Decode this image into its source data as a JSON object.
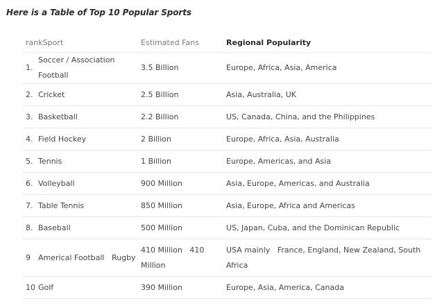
{
  "heading": "Here is a Table of Top 10 Popular Sports",
  "table": {
    "headers": {
      "rank": "rank",
      "sport": "Sport",
      "fans": "Estimated Fans",
      "region": "Regional Popularity"
    },
    "rows": [
      {
        "rank": "1.",
        "sport": "Soccer / Association Football",
        "fans": "3.5 Billion",
        "region": "Europe, Africa, Asia, America"
      },
      {
        "rank": "2.",
        "sport": "Cricket",
        "fans": "2.5 Billion",
        "region": "Asia, Australia, UK"
      },
      {
        "rank": "3.",
        "sport": "Basketball",
        "fans": "2.2 Billion",
        "region": "US, Canada, China, and the Philippines"
      },
      {
        "rank": "4.",
        "sport": "Field Hockey",
        "fans": "2 Billion",
        "region": "Europe, Africa, Asia, Australia"
      },
      {
        "rank": "5.",
        "sport": "Tennis",
        "fans": "1 Billion",
        "region": "Europe, Americas, and Asia"
      },
      {
        "rank": "6.",
        "sport": "Volleyball",
        "fans": "900 Million",
        "region": "Asia, Europe, Americas, and Australia"
      },
      {
        "rank": "7.",
        "sport": "Table Tennis",
        "fans": "850 Million",
        "region": "Asia, Europe, Africa and Americas"
      },
      {
        "rank": "8.",
        "sport": "Baseball",
        "fans": "500 Million",
        "region": "US, Japan, Cuba, and the Dominican Republic"
      },
      {
        "rank": "9",
        "sport": "Americal Football   Rugby",
        "fans": "410 Million   410 Million",
        "region": "USA mainly   France, England, New Zealand, South Africa"
      },
      {
        "rank": "10",
        "sport": "Golf",
        "fans": "390 Million",
        "region": "Europe, Asia, America, Canada"
      }
    ]
  }
}
